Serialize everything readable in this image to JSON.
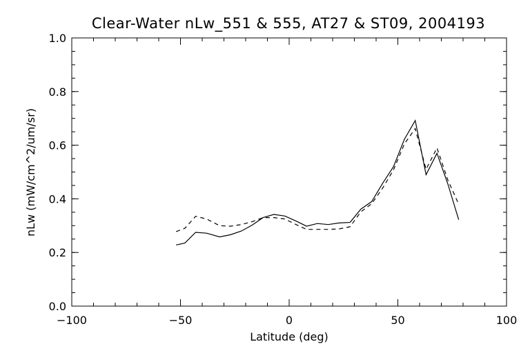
{
  "chart_data": {
    "type": "line",
    "title": "Clear-Water nLw_551 & 555, AT27 & ST09, 2004193",
    "xlabel": "Latitude (deg)",
    "ylabel": "nLw (mW/cm^2/um/sr)",
    "xlim": [
      -100,
      100
    ],
    "ylim": [
      0.0,
      1.0
    ],
    "x_ticks": [
      -100,
      -50,
      0,
      50,
      100
    ],
    "x_tick_labels": [
      "−100",
      "−50",
      "0",
      "50",
      "100"
    ],
    "y_ticks": [
      0.0,
      0.2,
      0.4,
      0.6,
      0.8,
      1.0
    ],
    "y_tick_labels": [
      "0.0",
      "0.2",
      "0.4",
      "0.6",
      "0.8",
      "1.0"
    ],
    "x_minor_step": 10,
    "y_minor_step": 0.05,
    "grid": false,
    "series": [
      {
        "style": "solid",
        "color": "#000000",
        "points": [
          [
            -52,
            0.228
          ],
          [
            -48,
            0.235
          ],
          [
            -43,
            0.275
          ],
          [
            -38,
            0.272
          ],
          [
            -32,
            0.258
          ],
          [
            -27,
            0.266
          ],
          [
            -22,
            0.28
          ],
          [
            -17,
            0.302
          ],
          [
            -12,
            0.33
          ],
          [
            -7,
            0.342
          ],
          [
            -2,
            0.336
          ],
          [
            3,
            0.318
          ],
          [
            8,
            0.298
          ],
          [
            13,
            0.308
          ],
          [
            18,
            0.304
          ],
          [
            23,
            0.31
          ],
          [
            28,
            0.312
          ],
          [
            33,
            0.362
          ],
          [
            38,
            0.39
          ],
          [
            43,
            0.458
          ],
          [
            48,
            0.52
          ],
          [
            53,
            0.622
          ],
          [
            58,
            0.692
          ],
          [
            63,
            0.49
          ],
          [
            68,
            0.57
          ],
          [
            73,
            0.455
          ],
          [
            78,
            0.322
          ]
        ]
      },
      {
        "style": "dashed",
        "color": "#000000",
        "points": [
          [
            -52,
            0.278
          ],
          [
            -48,
            0.29
          ],
          [
            -43,
            0.335
          ],
          [
            -38,
            0.325
          ],
          [
            -32,
            0.3
          ],
          [
            -27,
            0.298
          ],
          [
            -22,
            0.304
          ],
          [
            -17,
            0.315
          ],
          [
            -12,
            0.33
          ],
          [
            -7,
            0.33
          ],
          [
            -2,
            0.325
          ],
          [
            3,
            0.305
          ],
          [
            8,
            0.286
          ],
          [
            13,
            0.286
          ],
          [
            18,
            0.286
          ],
          [
            23,
            0.288
          ],
          [
            28,
            0.296
          ],
          [
            33,
            0.352
          ],
          [
            38,
            0.382
          ],
          [
            43,
            0.44
          ],
          [
            48,
            0.508
          ],
          [
            53,
            0.605
          ],
          [
            58,
            0.662
          ],
          [
            63,
            0.51
          ],
          [
            68,
            0.59
          ],
          [
            73,
            0.47
          ],
          [
            78,
            0.38
          ]
        ]
      }
    ]
  }
}
